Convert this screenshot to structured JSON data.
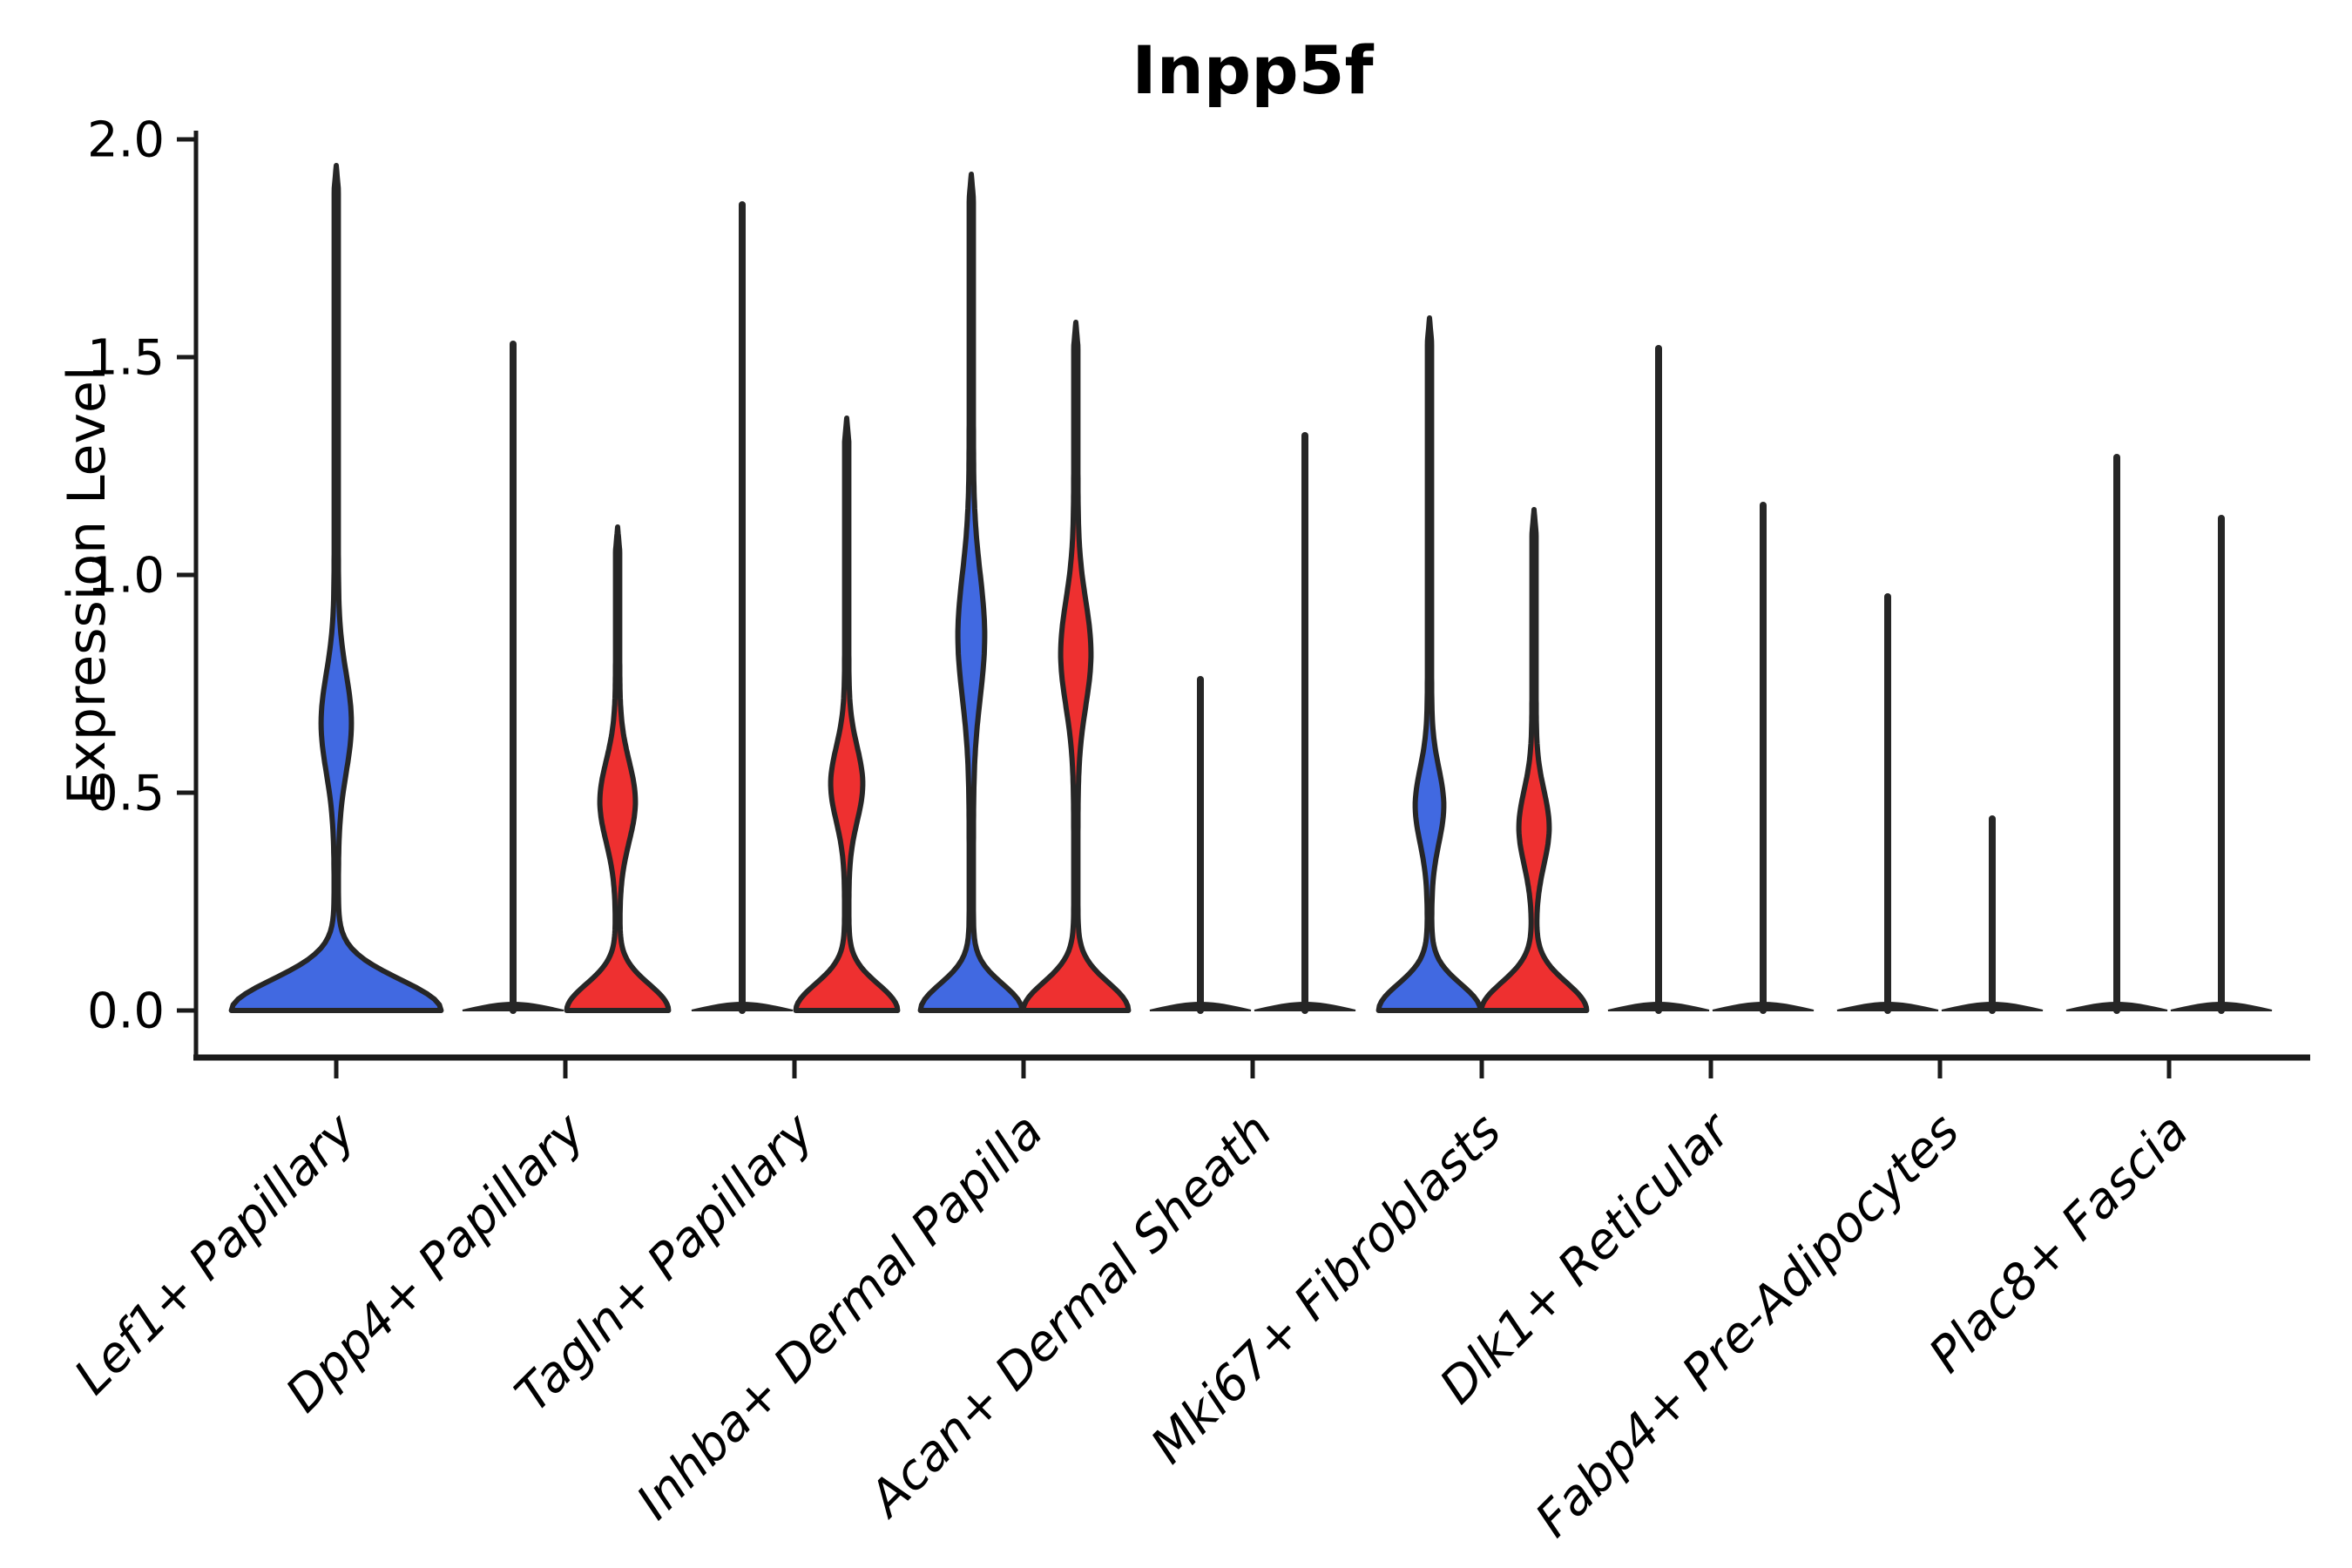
{
  "title": "Inpp5f",
  "y_axis": {
    "label": "Expression Level",
    "ticks": [
      "2.0",
      "1.5",
      "1.0",
      "0.5",
      "0.0"
    ],
    "tick_values": [
      2.0,
      1.5,
      1.0,
      0.5,
      0.0
    ]
  },
  "x_axis": {
    "categories": [
      "Lef1+ Papillary",
      "Dpp4+ Papillary",
      "Tagln+ Papillary",
      "Inhba+ Dermal Papilla",
      "Acan+ Dermal Sheath",
      "Mki67+ Fibroblasts",
      "Dlk1+ Reticular",
      "Fabp4+ Pre-Adipocytes",
      "Plac8+ Fascia"
    ]
  },
  "colors": {
    "blue_fill": "#4169e1",
    "red_fill": "#ee3030",
    "outline": "#262626",
    "axis": "#1a1a1a",
    "text": "#000000",
    "background": "#ffffff"
  },
  "chart_data": {
    "type": "violin",
    "title": "Inpp5f",
    "xlabel": "",
    "ylabel": "Expression Level",
    "ylim": [
      0.0,
      2.0
    ],
    "yticks": [
      0.0,
      0.5,
      1.0,
      1.5,
      2.0
    ],
    "grid": false,
    "legend": "none",
    "categories": [
      "Lef1+ Papillary",
      "Dpp4+ Papillary",
      "Tagln+ Papillary",
      "Inhba+ Dermal Papilla",
      "Acan+ Dermal Sheath",
      "Mki67+ Fibroblasts",
      "Dlk1+ Reticular",
      "Fabp4+ Pre-Adipocytes",
      "Plac8+ Fascia"
    ],
    "series": [
      {
        "name": "blue",
        "color": "#4169e1",
        "max_expression": [
          1.94,
          1.53,
          1.85,
          1.92,
          0.76,
          1.59,
          1.52,
          0.95,
          1.27
        ]
      },
      {
        "name": "red",
        "color": "#ee3030",
        "max_expression": [
          null,
          1.11,
          1.36,
          1.58,
          1.32,
          1.15,
          1.16,
          0.44,
          1.13
        ]
      }
    ],
    "violins": [
      {
        "category": 0,
        "side": "center",
        "group": "blue",
        "kind": "violin",
        "peak": 1.94,
        "bulge": {
          "mu": 0.66,
          "sigma": 0.16,
          "amp": 15
        },
        "base": {
          "amp": 118,
          "sigma": 0.1
        }
      },
      {
        "category": 1,
        "side": "left",
        "group": "blue",
        "kind": "line",
        "peak": 1.53
      },
      {
        "category": 1,
        "side": "right",
        "group": "red",
        "kind": "violin",
        "peak": 1.11,
        "bulge": {
          "mu": 0.48,
          "sigma": 0.13,
          "amp": 18
        },
        "base": {
          "amp": 56,
          "sigma": 0.085
        }
      },
      {
        "category": 2,
        "side": "left",
        "group": "blue",
        "kind": "line",
        "peak": 1.85
      },
      {
        "category": 2,
        "side": "right",
        "group": "red",
        "kind": "violin",
        "peak": 1.36,
        "bulge": {
          "mu": 0.52,
          "sigma": 0.12,
          "amp": 16
        },
        "base": {
          "amp": 56,
          "sigma": 0.085
        }
      },
      {
        "category": 3,
        "side": "left",
        "group": "blue",
        "kind": "violin",
        "peak": 1.92,
        "bulge": {
          "mu": 0.86,
          "sigma": 0.2,
          "amp": 13
        },
        "base": {
          "amp": 56,
          "sigma": 0.085
        }
      },
      {
        "category": 3,
        "side": "right",
        "group": "red",
        "kind": "violin",
        "peak": 1.58,
        "bulge": {
          "mu": 0.82,
          "sigma": 0.17,
          "amp": 15
        },
        "base": {
          "amp": 58,
          "sigma": 0.09
        }
      },
      {
        "category": 4,
        "side": "left",
        "group": "blue",
        "kind": "line",
        "peak": 0.76
      },
      {
        "category": 4,
        "side": "right",
        "group": "red",
        "kind": "line",
        "peak": 1.32
      },
      {
        "category": 5,
        "side": "left",
        "group": "blue",
        "kind": "violin",
        "peak": 1.59,
        "bulge": {
          "mu": 0.47,
          "sigma": 0.12,
          "amp": 14
        },
        "base": {
          "amp": 56,
          "sigma": 0.085
        }
      },
      {
        "category": 5,
        "side": "right",
        "group": "red",
        "kind": "violin",
        "peak": 1.15,
        "bulge": {
          "mu": 0.42,
          "sigma": 0.12,
          "amp": 15
        },
        "base": {
          "amp": 58,
          "sigma": 0.09
        }
      },
      {
        "category": 6,
        "side": "left",
        "group": "blue",
        "kind": "line",
        "peak": 1.52
      },
      {
        "category": 6,
        "side": "right",
        "group": "red",
        "kind": "line",
        "peak": 1.16
      },
      {
        "category": 7,
        "side": "left",
        "group": "blue",
        "kind": "line",
        "peak": 0.95
      },
      {
        "category": 7,
        "side": "right",
        "group": "red",
        "kind": "line",
        "peak": 0.44
      },
      {
        "category": 8,
        "side": "left",
        "group": "blue",
        "kind": "line",
        "peak": 1.27
      },
      {
        "category": 8,
        "side": "right",
        "group": "red",
        "kind": "line",
        "peak": 1.13
      }
    ]
  }
}
